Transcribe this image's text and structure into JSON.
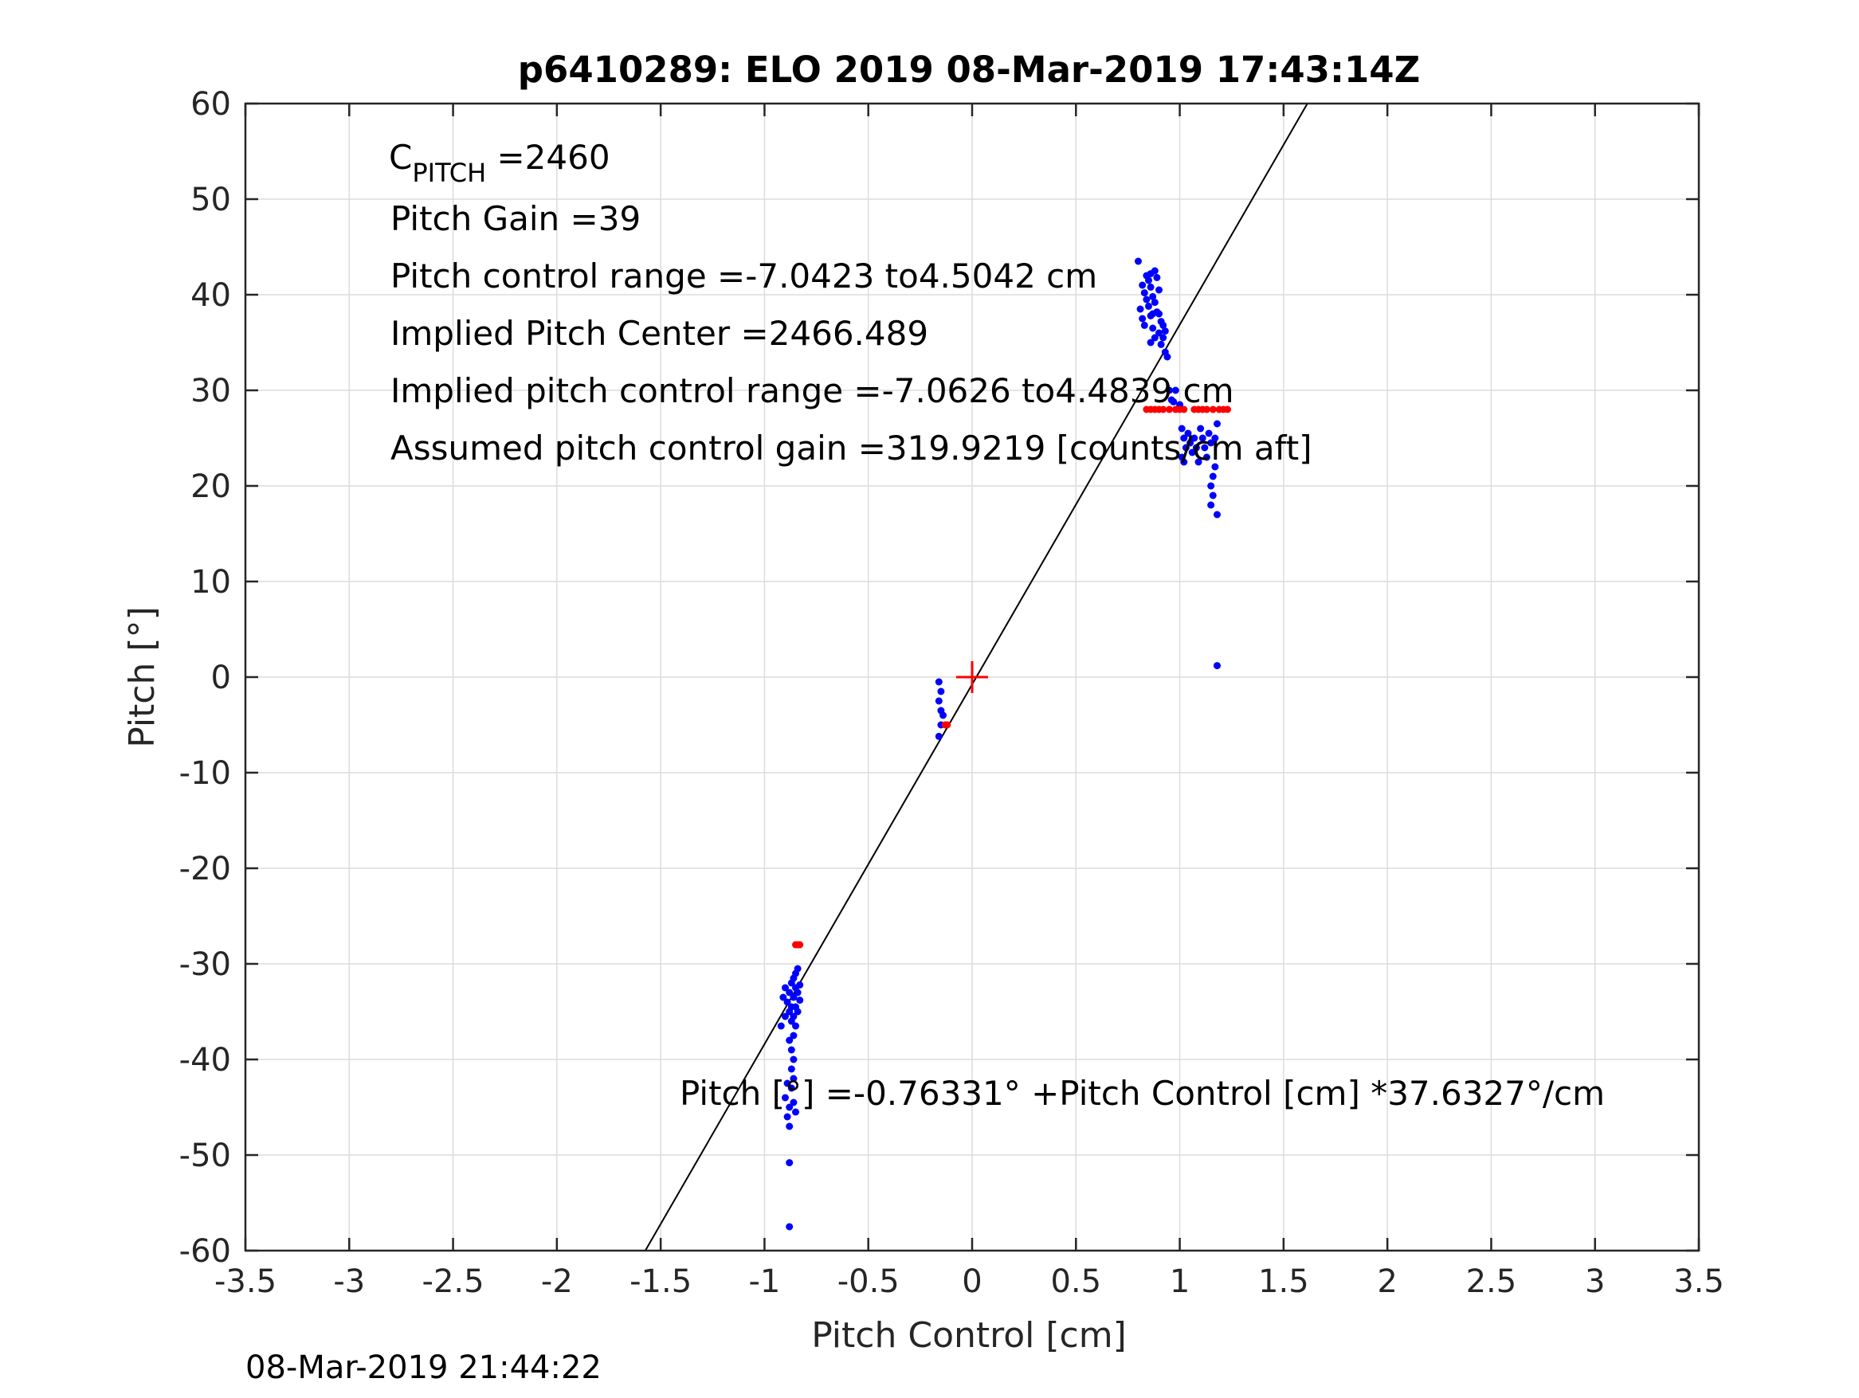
{
  "chart_data": {
    "type": "scatter",
    "title": "p6410289: ELO 2019 08-Mar-2019 17:43:14Z",
    "xlabel": "Pitch Control [cm]",
    "ylabel": "Pitch [°]",
    "xlim": [
      -3.5,
      3.5
    ],
    "ylim": [
      -60,
      60
    ],
    "xticks": [
      -3.5,
      -3,
      -2.5,
      -2,
      -1.5,
      -1,
      -0.5,
      0,
      0.5,
      1,
      1.5,
      2,
      2.5,
      3,
      3.5
    ],
    "xtick_labels": [
      "-3.5",
      "-3",
      "-2.5",
      "-2",
      "-1.5",
      "-1",
      "-0.5",
      "0",
      "0.5",
      "1",
      "1.5",
      "2",
      "2.5",
      "3",
      "3.5"
    ],
    "yticks": [
      -60,
      -50,
      -40,
      -30,
      -20,
      -10,
      0,
      10,
      20,
      30,
      40,
      50,
      60
    ],
    "ytick_labels": [
      "-60",
      "-50",
      "-40",
      "-30",
      "-20",
      "-10",
      "0",
      "10",
      "20",
      "30",
      "40",
      "50",
      "60"
    ],
    "grid": true,
    "annotations": {
      "c_pitch_symbol": "C",
      "c_pitch_subscript": "PITCH",
      "c_pitch_value": " =2460",
      "pitch_gain": "Pitch Gain =39",
      "pitch_control_range": "Pitch control range =-7.0423 to4.5042 cm",
      "implied_pitch_center": "Implied Pitch Center =2466.489",
      "implied_pitch_control_range": "Implied pitch control range =-7.0626 to4.4839 cm",
      "assumed_gain": "Assumed pitch control gain =319.9219 [counts/cm aft]",
      "fit_equation": "Pitch [°] =-0.76331° +Pitch Control [cm] *37.6327°/cm"
    },
    "fit_line": {
      "intercept": -0.76331,
      "slope": 37.6327,
      "color": "#000000"
    },
    "center_marker": {
      "x": 0,
      "y": 0,
      "color": "#ff0000"
    },
    "series": [
      {
        "color": "#0000ff",
        "points": [
          [
            0.8,
            43.5
          ],
          [
            0.82,
            41.0
          ],
          [
            0.83,
            40.2
          ],
          [
            0.84,
            39.5
          ],
          [
            0.81,
            38.5
          ],
          [
            0.82,
            37.5
          ],
          [
            0.83,
            36.8
          ],
          [
            0.85,
            41.5
          ],
          [
            0.86,
            40.8
          ],
          [
            0.87,
            39.8
          ],
          [
            0.85,
            38.8
          ],
          [
            0.86,
            37.8
          ],
          [
            0.87,
            36.5
          ],
          [
            0.88,
            35.5
          ],
          [
            0.86,
            35.0
          ],
          [
            0.88,
            42.5
          ],
          [
            0.89,
            41.8
          ],
          [
            0.9,
            40.5
          ],
          [
            0.88,
            39.2
          ],
          [
            0.89,
            38.2
          ],
          [
            0.91,
            37.2
          ],
          [
            0.9,
            36.0
          ],
          [
            0.92,
            35.5
          ],
          [
            0.91,
            34.8
          ],
          [
            0.93,
            34.0
          ],
          [
            0.94,
            33.5
          ],
          [
            0.92,
            36.8
          ],
          [
            0.87,
            38.0
          ],
          [
            0.84,
            42.0
          ],
          [
            0.86,
            42.2
          ],
          [
            0.9,
            38.0
          ],
          [
            0.93,
            36.2
          ],
          [
            0.95,
            30.0
          ],
          [
            0.96,
            29.0
          ],
          [
            0.97,
            28.8
          ],
          [
            0.98,
            30.0
          ],
          [
            1.0,
            28.5
          ],
          [
            1.01,
            26.0
          ],
          [
            1.02,
            25.0
          ],
          [
            1.03,
            24.0
          ],
          [
            1.01,
            23.0
          ],
          [
            1.02,
            22.5
          ],
          [
            1.04,
            25.5
          ],
          [
            1.05,
            24.5
          ],
          [
            1.06,
            23.5
          ],
          [
            1.07,
            25.0
          ],
          [
            1.08,
            24.0
          ],
          [
            1.09,
            22.5
          ],
          [
            1.1,
            26.0
          ],
          [
            1.11,
            25.0
          ],
          [
            1.12,
            24.0
          ],
          [
            1.13,
            23.0
          ],
          [
            1.14,
            25.5
          ],
          [
            1.15,
            24.5
          ],
          [
            1.16,
            21.0
          ],
          [
            1.17,
            22.0
          ],
          [
            1.15,
            20.0
          ],
          [
            1.16,
            19.0
          ],
          [
            1.15,
            18.0
          ],
          [
            1.18,
            17.0
          ],
          [
            1.17,
            25.0
          ],
          [
            1.18,
            26.5
          ],
          [
            1.18,
            1.2
          ],
          [
            -0.16,
            -0.5
          ],
          [
            -0.15,
            -1.5
          ],
          [
            -0.16,
            -2.5
          ],
          [
            -0.15,
            -3.5
          ],
          [
            -0.14,
            -4.0
          ],
          [
            -0.15,
            -5.0
          ],
          [
            -0.16,
            -6.2
          ],
          [
            -0.84,
            -30.5
          ],
          [
            -0.85,
            -31.0
          ],
          [
            -0.86,
            -31.5
          ],
          [
            -0.87,
            -32.0
          ],
          [
            -0.85,
            -32.5
          ],
          [
            -0.83,
            -32.2
          ],
          [
            -0.84,
            -33.0
          ],
          [
            -0.86,
            -33.5
          ],
          [
            -0.88,
            -33.0
          ],
          [
            -0.9,
            -32.5
          ],
          [
            -0.91,
            -33.5
          ],
          [
            -0.89,
            -34.0
          ],
          [
            -0.87,
            -34.5
          ],
          [
            -0.85,
            -34.5
          ],
          [
            -0.83,
            -33.8
          ],
          [
            -0.84,
            -35.0
          ],
          [
            -0.86,
            -35.5
          ],
          [
            -0.88,
            -35.0
          ],
          [
            -0.9,
            -35.5
          ],
          [
            -0.92,
            -36.5
          ],
          [
            -0.87,
            -36.0
          ],
          [
            -0.85,
            -36.5
          ],
          [
            -0.86,
            -37.5
          ],
          [
            -0.88,
            -38.0
          ],
          [
            -0.87,
            -39.0
          ],
          [
            -0.86,
            -40.0
          ],
          [
            -0.87,
            -41.0
          ],
          [
            -0.86,
            -42.0
          ],
          [
            -0.87,
            -43.0
          ],
          [
            -0.86,
            -44.5
          ],
          [
            -0.85,
            -45.5
          ],
          [
            -0.88,
            -45.0
          ],
          [
            -0.89,
            -46.0
          ],
          [
            -0.88,
            -47.0
          ],
          [
            -0.9,
            -44.0
          ],
          [
            -0.89,
            -42.5
          ],
          [
            -0.88,
            -50.8
          ],
          [
            -0.88,
            -57.5
          ]
        ]
      },
      {
        "color": "#ff0000",
        "points": [
          [
            0.84,
            28.0
          ],
          [
            0.86,
            28.0
          ],
          [
            0.88,
            28.0
          ],
          [
            0.9,
            28.0
          ],
          [
            0.92,
            28.0
          ],
          [
            0.95,
            28.0
          ],
          [
            0.98,
            28.0
          ],
          [
            1.0,
            28.0
          ],
          [
            1.02,
            28.0
          ],
          [
            1.07,
            28.0
          ],
          [
            1.09,
            28.0
          ],
          [
            1.11,
            28.0
          ],
          [
            1.13,
            28.0
          ],
          [
            1.16,
            28.0
          ],
          [
            1.19,
            28.0
          ],
          [
            1.21,
            28.0
          ],
          [
            1.23,
            28.0
          ],
          [
            -0.13,
            -5.0
          ],
          [
            -0.12,
            -5.0
          ],
          [
            -0.85,
            -28.0
          ],
          [
            -0.84,
            -28.0
          ],
          [
            -0.83,
            -28.0
          ]
        ]
      }
    ]
  },
  "footer_timestamp": "08-Mar-2019 21:44:22"
}
